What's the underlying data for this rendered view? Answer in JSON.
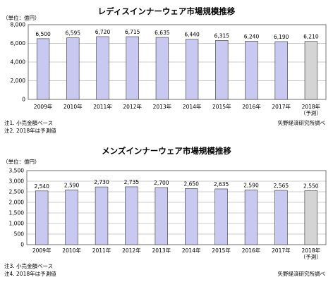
{
  "charts": [
    {
      "notes": [
        "注1. 小売金額ベース",
        "注2. 2018年は予測値"
      ],
      "source": "矢野経済研究所調べ"
    },
    {
      "notes": [
        "注3. 小売金額ベース",
        "注4. 2018年は予測値"
      ],
      "source": "矢野経済研究所調べ"
    }
  ],
  "chart_data": [
    {
      "type": "bar",
      "title": "レディスインナーウェア市場規模推移",
      "unit_label": "（単位：億円）",
      "categories": [
        "2009年",
        "2010年",
        "2011年",
        "2012年",
        "2013年",
        "2014年",
        "2015年",
        "2016年",
        "2017年",
        "2018年"
      ],
      "category_sublabels": [
        "",
        "",
        "",
        "",
        "",
        "",
        "",
        "",
        "",
        "（予測）"
      ],
      "values": [
        6500,
        6595,
        6720,
        6715,
        6635,
        6440,
        6315,
        6240,
        6190,
        6210
      ],
      "value_labels": [
        "6,500",
        "6,595",
        "6,720",
        "6,715",
        "6,635",
        "6,440",
        "6,315",
        "6,240",
        "6,190",
        "6,210"
      ],
      "forecast_index": 9,
      "ylim": [
        0,
        8000
      ],
      "yticks": [
        0,
        2000,
        4000,
        6000,
        8000
      ],
      "ytick_labels": [
        "0",
        "2,000",
        "4,000",
        "6,000",
        "8,000"
      ],
      "grid": true,
      "colors": {
        "bar": "#c8c8f0",
        "forecast": "#d4d4d4",
        "grid": "#999999",
        "border": "#555555"
      }
    },
    {
      "type": "bar",
      "title": "メンズインナーウェア市場規模推移",
      "unit_label": "（単位：億円）",
      "categories": [
        "2009年",
        "2010年",
        "2011年",
        "2012年",
        "2013年",
        "2014年",
        "2015年",
        "2016年",
        "2017年",
        "2018年"
      ],
      "category_sublabels": [
        "",
        "",
        "",
        "",
        "",
        "",
        "",
        "",
        "",
        "（予測）"
      ],
      "values": [
        2540,
        2590,
        2730,
        2735,
        2700,
        2650,
        2635,
        2590,
        2565,
        2550
      ],
      "value_labels": [
        "2,540",
        "2,590",
        "2,730",
        "2,735",
        "2,700",
        "2,650",
        "2,635",
        "2,590",
        "2,565",
        "2,550"
      ],
      "forecast_index": 9,
      "ylim": [
        0,
        3500
      ],
      "yticks": [
        0,
        500,
        1000,
        1500,
        2000,
        2500,
        3000,
        3500
      ],
      "ytick_labels": [
        "0",
        "500",
        "1,000",
        "1,500",
        "2,000",
        "2,500",
        "3,000",
        "3,500"
      ],
      "grid": true,
      "colors": {
        "bar": "#c8c8f0",
        "forecast": "#d4d4d4",
        "grid": "#999999",
        "border": "#555555"
      }
    }
  ]
}
